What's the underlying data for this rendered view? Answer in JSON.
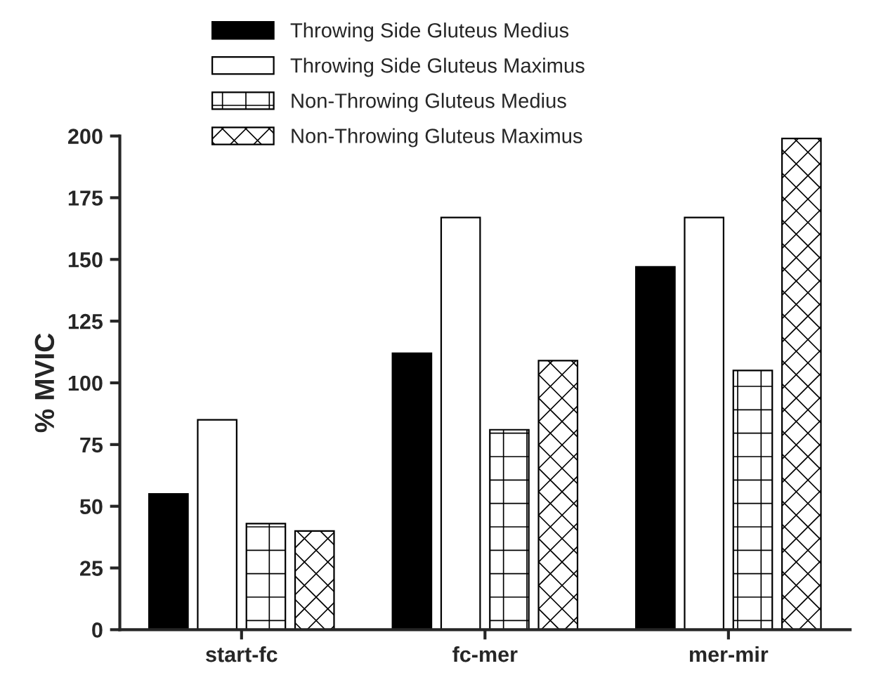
{
  "chart_data": {
    "type": "bar",
    "ylabel": "% MVIC",
    "categories": [
      "start-fc",
      "fc-mer",
      "mer-mir"
    ],
    "series": [
      {
        "name": "Throwing Side Gluteus Medius",
        "color": "#000000",
        "values": [
          55,
          112,
          147
        ]
      },
      {
        "name": "Throwing Side Gluteus Maximus",
        "color": "#ffffff",
        "values": [
          85,
          167,
          167
        ]
      },
      {
        "name": "Non-Throwing Gluteus Medius",
        "color": "#000000",
        "values": [
          43,
          81,
          105
        ]
      },
      {
        "name": "Non-Throwing Gluteus Maximus",
        "color": "#000000",
        "values": [
          40,
          109,
          199
        ]
      }
    ],
    "ylim": [
      0,
      200
    ],
    "yticks": [
      0,
      25,
      50,
      75,
      100,
      125,
      150,
      175,
      200
    ],
    "grid": false,
    "legend": "top"
  }
}
